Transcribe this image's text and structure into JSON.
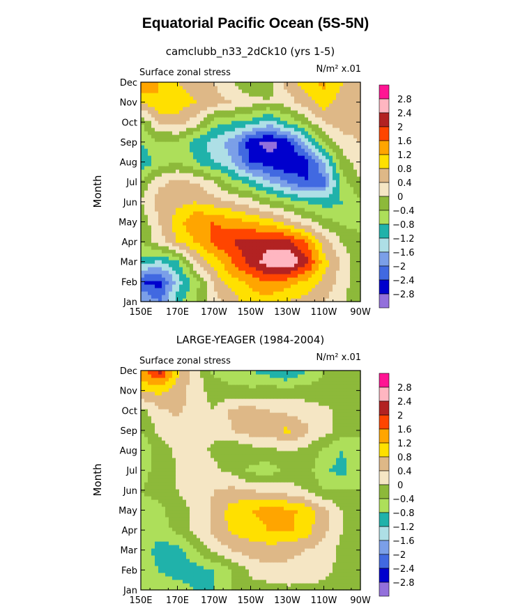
{
  "title": "Equatorial Pacific Ocean (5S-5N)",
  "contour_levels": [
    -2.8,
    -2.4,
    -2,
    -1.6,
    -1.2,
    -0.8,
    -0.4,
    0,
    0.4,
    0.8,
    1.2,
    1.6,
    2,
    2.4,
    2.8
  ],
  "colors": {
    "fill_scale": [
      "#9370DB",
      "#0000CD",
      "#4169E1",
      "#7B9FE8",
      "#AEDFE6",
      "#20B2AA",
      "#ADDF5A",
      "#8DB93A",
      "#F5E6C4",
      "#DEB887",
      "#FFE000",
      "#FFA500",
      "#FF4500",
      "#B22222",
      "#FFB6C1",
      "#FF1493"
    ]
  },
  "chart_data": [
    {
      "type": "heatmap",
      "title": "camclubb_n33_2dCk10 (yrs 1-5)",
      "subtitle_left": "Surface zonal stress",
      "subtitle_right": "N/m² x.01",
      "ylabel": "Month",
      "x_tick_labels": [
        "150E",
        "170E",
        "170W",
        "150W",
        "130W",
        "110W",
        "90W"
      ],
      "y_tick_labels": [
        "Jan",
        "Feb",
        "Mar",
        "Apr",
        "May",
        "Jun",
        "Jul",
        "Aug",
        "Sep",
        "Oct",
        "Nov",
        "Dec"
      ],
      "colorbar_labels": [
        "2.8",
        "2.4",
        "2",
        "1.6",
        "1.2",
        "0.8",
        "0.4",
        "0",
        "-0.4",
        "-0.8",
        "-1.2",
        "-1.6",
        "-2",
        "-2.4",
        "-2.8"
      ],
      "x": [
        150,
        160,
        170,
        180,
        190,
        200,
        210,
        220,
        230,
        240,
        250,
        260,
        270
      ],
      "y": [
        "Jan",
        "Feb",
        "Mar",
        "Apr",
        "May",
        "Jun",
        "Jul",
        "Aug",
        "Sep",
        "Oct",
        "Nov",
        "Dec"
      ],
      "z": [
        [
          -1.5,
          -2.0,
          -1.0,
          -0.4,
          0.2,
          0.6,
          1.0,
          1.0,
          0.8,
          0.6,
          0.4,
          0.1,
          -0.4
        ],
        [
          -2.4,
          -2.6,
          -1.4,
          -0.6,
          0.5,
          1.0,
          1.3,
          1.6,
          1.4,
          1.1,
          0.7,
          0.2,
          -0.3
        ],
        [
          -1.0,
          -1.3,
          -0.9,
          0.4,
          1.0,
          1.6,
          2.2,
          2.6,
          2.8,
          2.2,
          1.0,
          0.3,
          -0.3
        ],
        [
          -0.4,
          0.2,
          0.8,
          1.2,
          1.7,
          2.0,
          2.2,
          2.3,
          2.2,
          1.6,
          0.6,
          0.0,
          -0.3
        ],
        [
          -0.3,
          0.4,
          1.0,
          1.6,
          1.6,
          1.4,
          1.2,
          1.0,
          0.6,
          0.2,
          -0.2,
          -0.5,
          -0.5
        ],
        [
          0.0,
          0.6,
          0.7,
          0.8,
          0.6,
          0.4,
          0.2,
          -0.2,
          -0.5,
          -0.8,
          -1.0,
          -0.8,
          -0.5
        ],
        [
          -0.3,
          0.3,
          0.5,
          0.4,
          0.0,
          -0.6,
          -1.0,
          -1.6,
          -2.0,
          -2.4,
          -2.2,
          -0.6,
          0.0
        ],
        [
          -1.2,
          -0.6,
          -0.4,
          -0.8,
          -1.2,
          -1.6,
          -2.4,
          -2.6,
          -2.8,
          -2.6,
          -1.6,
          -0.2,
          0.2
        ],
        [
          -0.8,
          -0.4,
          -0.5,
          -1.0,
          -1.4,
          -1.8,
          -2.6,
          -3.0,
          -2.6,
          -1.6,
          -0.4,
          0.2,
          0.4
        ],
        [
          -0.4,
          0.4,
          0.6,
          0.2,
          -0.6,
          -0.8,
          -1.0,
          -1.4,
          -0.8,
          -0.2,
          0.4,
          0.6,
          0.6
        ],
        [
          0.8,
          1.2,
          1.0,
          0.8,
          0.6,
          0.4,
          0.2,
          0.0,
          0.2,
          0.6,
          1.0,
          0.6,
          0.4
        ],
        [
          1.6,
          1.2,
          0.8,
          0.6,
          0.4,
          0.0,
          -0.4,
          -0.2,
          0.6,
          1.0,
          1.3,
          0.8,
          0.6
        ]
      ]
    },
    {
      "type": "heatmap",
      "title": "LARGE-YEAGER (1984-2004)",
      "subtitle_left": "Surface zonal stress",
      "subtitle_right": "N/m² x.01",
      "ylabel": "Month",
      "x_tick_labels": [
        "150E",
        "170E",
        "170W",
        "150W",
        "130W",
        "110W",
        "90W"
      ],
      "y_tick_labels": [
        "Jan",
        "Feb",
        "Mar",
        "Apr",
        "May",
        "Jun",
        "Jul",
        "Aug",
        "Sep",
        "Oct",
        "Nov",
        "Dec"
      ],
      "colorbar_labels": [
        "2.8",
        "2.4",
        "2",
        "1.6",
        "1.2",
        "0.8",
        "0.4",
        "0",
        "-0.4",
        "-0.8",
        "-1.2",
        "-1.6",
        "-2",
        "-2.4",
        "-2.8"
      ],
      "x": [
        150,
        160,
        170,
        180,
        190,
        200,
        210,
        220,
        230,
        240,
        250,
        260,
        270
      ],
      "y": [
        "Jan",
        "Feb",
        "Mar",
        "Apr",
        "May",
        "Jun",
        "Jul",
        "Aug",
        "Sep",
        "Oct",
        "Nov",
        "Dec"
      ],
      "z": [
        [
          -0.6,
          -0.6,
          -0.6,
          -0.8,
          -0.8,
          -0.4,
          -0.2,
          -0.2,
          -0.1,
          -0.1,
          -0.1,
          -0.1,
          -0.4
        ],
        [
          -0.6,
          -0.8,
          -1.0,
          -1.0,
          -0.8,
          -0.4,
          0.1,
          0.3,
          0.3,
          0.2,
          0.1,
          -0.1,
          -0.4
        ],
        [
          -0.5,
          -1.0,
          -1.0,
          -0.4,
          0.1,
          0.4,
          0.6,
          0.6,
          0.5,
          0.4,
          0.2,
          -0.1,
          -0.4
        ],
        [
          -0.5,
          -0.6,
          -0.3,
          0.1,
          0.5,
          0.9,
          1.0,
          1.2,
          1.3,
          1.0,
          0.5,
          0.0,
          -0.4
        ],
        [
          -0.5,
          -0.5,
          -0.2,
          0.1,
          0.5,
          1.0,
          1.2,
          1.4,
          1.3,
          1.1,
          0.5,
          0.0,
          -0.4
        ],
        [
          -0.4,
          -0.3,
          0.0,
          0.2,
          0.4,
          0.5,
          0.4,
          0.3,
          0.2,
          0.0,
          -0.4,
          -0.3,
          -0.4
        ],
        [
          -0.5,
          -0.3,
          0.0,
          0.2,
          0.1,
          -0.1,
          -0.5,
          -0.6,
          -0.3,
          -0.2,
          -0.7,
          -1.0,
          -0.4
        ],
        [
          -0.8,
          -0.2,
          0.1,
          0.2,
          -0.1,
          -0.4,
          -0.2,
          -0.1,
          0.0,
          -0.1,
          -0.5,
          -0.8,
          -0.4
        ],
        [
          -0.4,
          0.1,
          0.2,
          0.2,
          0.1,
          0.4,
          0.6,
          0.6,
          0.9,
          0.5,
          0.2,
          -0.2,
          -0.4
        ],
        [
          -0.2,
          0.3,
          0.5,
          0.2,
          0.0,
          0.5,
          0.6,
          0.4,
          0.3,
          0.2,
          0.1,
          -0.1,
          -0.4
        ],
        [
          0.9,
          0.9,
          0.6,
          0.2,
          -0.2,
          -0.3,
          -0.3,
          -0.2,
          -0.2,
          -0.2,
          -0.3,
          -0.2,
          -0.4
        ],
        [
          1.4,
          2.2,
          0.9,
          0.2,
          -0.5,
          -0.6,
          -0.8,
          -1.0,
          -1.3,
          -0.8,
          -0.4,
          -0.2,
          -0.4
        ]
      ]
    }
  ]
}
